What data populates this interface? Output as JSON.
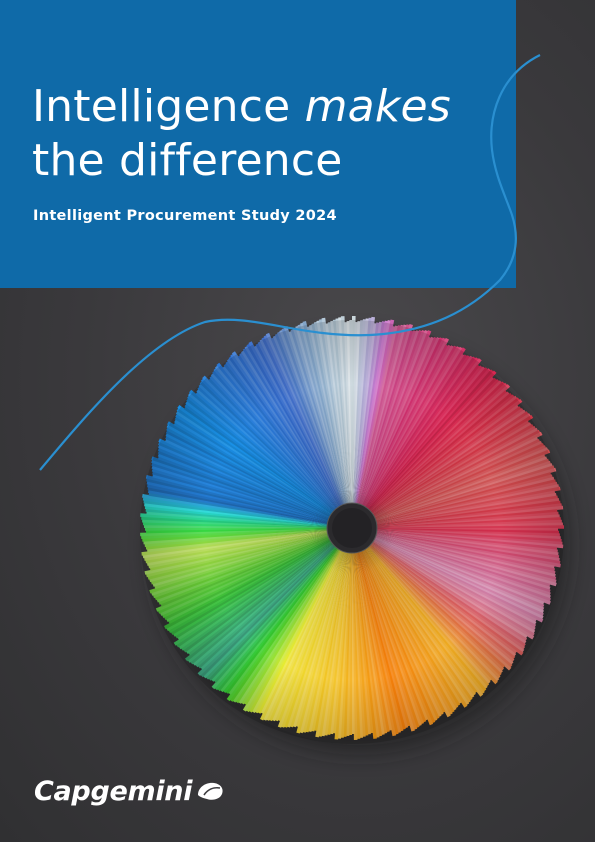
{
  "cover": {
    "title_line1_regular": "Intelligence ",
    "title_line1_italic": "makes",
    "title_line2": "the difference",
    "subtitle": "Intelligent Procurement Study 2024"
  },
  "brand": {
    "name": "Capgemini",
    "logo_icon": "spade-icon"
  },
  "colors": {
    "panel_blue": "#0f6aa8",
    "swoosh_blue": "#2a8fd0",
    "background": "#3d3c3f"
  }
}
